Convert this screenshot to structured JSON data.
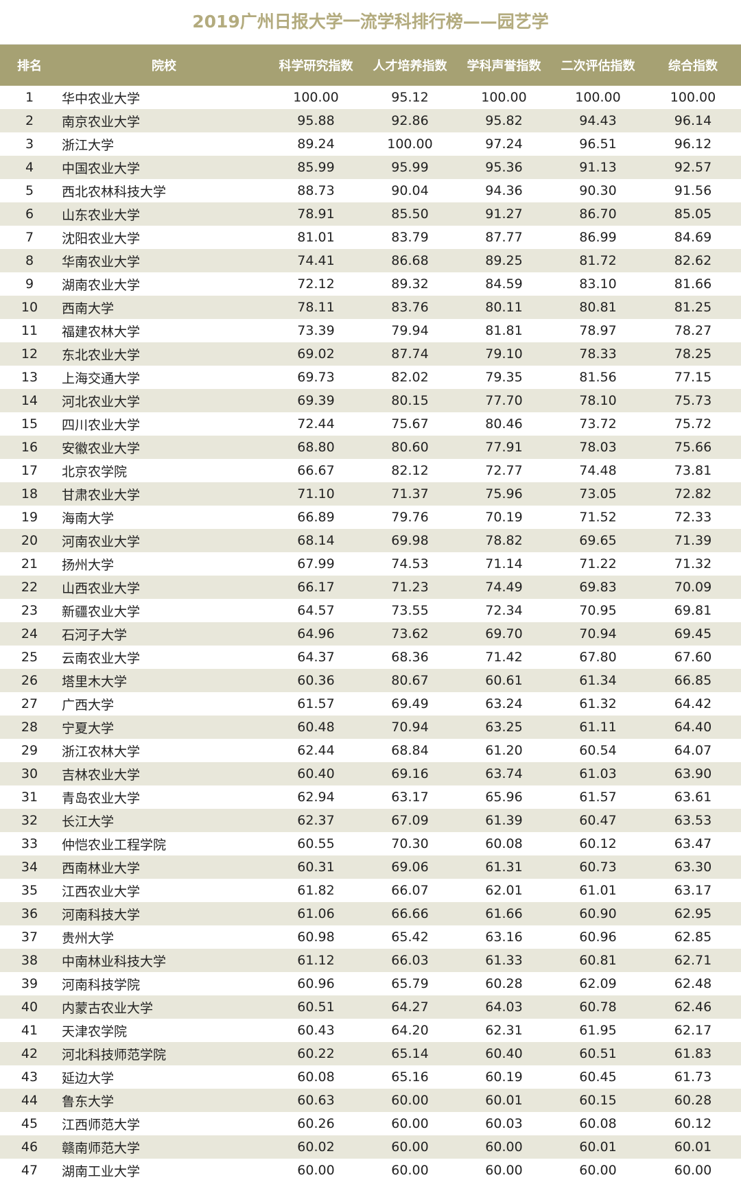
{
  "title": "2019广州日报大学一流学科排行榜——园艺学",
  "colors": {
    "header_bg": "#a6a173",
    "title": "#b3ab7e",
    "stripe": "#e8e7da"
  },
  "columns": [
    "排名",
    "院校",
    "科学研究指数",
    "人才培养指数",
    "学科声誉指数",
    "二次评估指数",
    "综合指数"
  ],
  "rows": [
    [
      "1",
      "华中农业大学",
      "100.00",
      "95.12",
      "100.00",
      "100.00",
      "100.00"
    ],
    [
      "2",
      "南京农业大学",
      "95.88",
      "92.86",
      "95.82",
      "94.43",
      "96.14"
    ],
    [
      "3",
      "浙江大学",
      "89.24",
      "100.00",
      "97.24",
      "96.51",
      "96.12"
    ],
    [
      "4",
      "中国农业大学",
      "85.99",
      "95.99",
      "95.36",
      "91.13",
      "92.57"
    ],
    [
      "5",
      "西北农林科技大学",
      "88.73",
      "90.04",
      "94.36",
      "90.30",
      "91.56"
    ],
    [
      "6",
      "山东农业大学",
      "78.91",
      "85.50",
      "91.27",
      "86.70",
      "85.05"
    ],
    [
      "7",
      "沈阳农业大学",
      "81.01",
      "83.79",
      "87.77",
      "86.99",
      "84.69"
    ],
    [
      "8",
      "华南农业大学",
      "74.41",
      "86.68",
      "89.25",
      "81.72",
      "82.62"
    ],
    [
      "9",
      "湖南农业大学",
      "72.12",
      "89.32",
      "84.59",
      "83.10",
      "81.66"
    ],
    [
      "10",
      "西南大学",
      "78.11",
      "83.76",
      "80.11",
      "80.81",
      "81.25"
    ],
    [
      "11",
      "福建农林大学",
      "73.39",
      "79.94",
      "81.81",
      "78.97",
      "78.27"
    ],
    [
      "12",
      "东北农业大学",
      "69.02",
      "87.74",
      "79.10",
      "78.33",
      "78.25"
    ],
    [
      "13",
      "上海交通大学",
      "69.73",
      "82.02",
      "79.35",
      "81.56",
      "77.15"
    ],
    [
      "14",
      "河北农业大学",
      "69.39",
      "80.15",
      "77.70",
      "78.10",
      "75.73"
    ],
    [
      "15",
      "四川农业大学",
      "72.44",
      "75.67",
      "80.46",
      "73.72",
      "75.72"
    ],
    [
      "16",
      "安徽农业大学",
      "68.80",
      "80.60",
      "77.91",
      "78.03",
      "75.66"
    ],
    [
      "17",
      "北京农学院",
      "66.67",
      "82.12",
      "72.77",
      "74.48",
      "73.81"
    ],
    [
      "18",
      "甘肃农业大学",
      "71.10",
      "71.37",
      "75.96",
      "73.05",
      "72.82"
    ],
    [
      "19",
      "海南大学",
      "66.89",
      "79.76",
      "70.19",
      "71.52",
      "72.33"
    ],
    [
      "20",
      "河南农业大学",
      "68.14",
      "69.98",
      "78.82",
      "69.65",
      "71.39"
    ],
    [
      "21",
      "扬州大学",
      "67.99",
      "74.53",
      "71.14",
      "71.22",
      "71.32"
    ],
    [
      "22",
      "山西农业大学",
      "66.17",
      "71.23",
      "74.49",
      "69.83",
      "70.09"
    ],
    [
      "23",
      "新疆农业大学",
      "64.57",
      "73.55",
      "72.34",
      "70.95",
      "69.81"
    ],
    [
      "24",
      "石河子大学",
      "64.96",
      "73.62",
      "69.70",
      "70.94",
      "69.45"
    ],
    [
      "25",
      "云南农业大学",
      "64.37",
      "68.36",
      "71.42",
      "67.80",
      "67.60"
    ],
    [
      "26",
      "塔里木大学",
      "60.36",
      "80.67",
      "60.61",
      "61.34",
      "66.85"
    ],
    [
      "27",
      "广西大学",
      "61.57",
      "69.49",
      "63.24",
      "61.32",
      "64.42"
    ],
    [
      "28",
      "宁夏大学",
      "60.48",
      "70.94",
      "63.25",
      "61.11",
      "64.40"
    ],
    [
      "29",
      "浙江农林大学",
      "62.44",
      "68.84",
      "61.20",
      "60.54",
      "64.07"
    ],
    [
      "30",
      "吉林农业大学",
      "60.40",
      "69.16",
      "63.74",
      "61.03",
      "63.90"
    ],
    [
      "31",
      "青岛农业大学",
      "62.94",
      "63.17",
      "65.96",
      "61.57",
      "63.61"
    ],
    [
      "32",
      "长江大学",
      "62.37",
      "67.09",
      "61.39",
      "60.47",
      "63.53"
    ],
    [
      "33",
      "仲恺农业工程学院",
      "60.55",
      "70.30",
      "60.08",
      "60.12",
      "63.47"
    ],
    [
      "34",
      "西南林业大学",
      "60.31",
      "69.06",
      "61.31",
      "60.73",
      "63.30"
    ],
    [
      "35",
      "江西农业大学",
      "61.82",
      "66.07",
      "62.01",
      "61.01",
      "63.17"
    ],
    [
      "36",
      "河南科技大学",
      "61.06",
      "66.66",
      "61.66",
      "60.90",
      "62.95"
    ],
    [
      "37",
      "贵州大学",
      "60.98",
      "65.42",
      "63.16",
      "60.96",
      "62.85"
    ],
    [
      "38",
      "中南林业科技大学",
      "61.12",
      "66.03",
      "61.33",
      "60.81",
      "62.71"
    ],
    [
      "39",
      "河南科技学院",
      "60.96",
      "65.79",
      "60.28",
      "62.09",
      "62.48"
    ],
    [
      "40",
      "内蒙古农业大学",
      "60.51",
      "64.27",
      "64.03",
      "60.78",
      "62.46"
    ],
    [
      "41",
      "天津农学院",
      "60.43",
      "64.20",
      "62.31",
      "61.95",
      "62.17"
    ],
    [
      "42",
      "河北科技师范学院",
      "60.22",
      "65.14",
      "60.40",
      "60.51",
      "61.83"
    ],
    [
      "43",
      "延边大学",
      "60.08",
      "65.16",
      "60.19",
      "60.45",
      "61.73"
    ],
    [
      "44",
      "鲁东大学",
      "60.63",
      "60.00",
      "60.01",
      "60.15",
      "60.28"
    ],
    [
      "45",
      "江西师范大学",
      "60.26",
      "60.00",
      "60.03",
      "60.08",
      "60.12"
    ],
    [
      "46",
      "赣南师范大学",
      "60.02",
      "60.00",
      "60.00",
      "60.01",
      "60.01"
    ],
    [
      "47",
      "湖南工业大学",
      "60.00",
      "60.00",
      "60.00",
      "60.00",
      "60.00"
    ]
  ]
}
